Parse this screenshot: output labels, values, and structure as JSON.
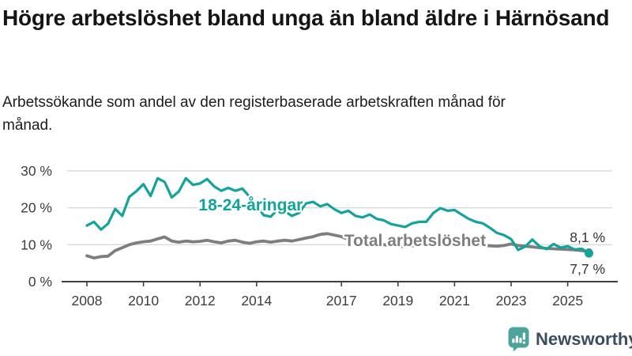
{
  "title": "Högre arbetslöshet bland unga än bland äldre i Härnösand",
  "subtitle": "Arbetssökande som andel av den registerbaserade arbetskraften månad för månad.",
  "branding": {
    "name": "Newsworthy",
    "icon": "newsworthy-speech-bubble-chart-icon",
    "icon_color": "#4CA49B",
    "text_color": "#3B4D5E"
  },
  "chart_data": {
    "type": "line",
    "title": "Högre arbetslöshet bland unga än bland äldre i Härnösand",
    "subtitle": "Arbetssökande som andel av den registerbaserade arbetskraften månad för månad.",
    "xlabel": "",
    "ylabel": "",
    "x_unit": "year (monthly series, sampled quarterly)",
    "x_axis_ticks": [
      2008,
      2010,
      2012,
      2014,
      2017,
      2019,
      2021,
      2023,
      2025
    ],
    "y_axis_ticks": [
      0,
      10,
      20,
      30
    ],
    "y_tick_suffix": " %",
    "ylim": [
      0,
      30
    ],
    "xlim_years": [
      2007.1,
      2026.8
    ],
    "grid": "horizontal",
    "legend": "inline-labels",
    "axis_text_color": "#3D3D3D",
    "gridline_color": "#DBDBDB",
    "axis_line_color": "#3F3F3F",
    "end_label_color": "#333333",
    "series": [
      {
        "name": "Total arbetslöshet",
        "color": "#7E7E7E",
        "line_width": 3.8,
        "end_dot_radius": 4.5,
        "start_year": 2008,
        "points_per_year": 4,
        "last_value_label": "8,1 %",
        "end_label_position": "above",
        "inline_label": {
          "x_year": 2017.1,
          "y_value": 9.6,
          "halo": true
        },
        "values": [
          7.0,
          6.4,
          6.8,
          6.9,
          8.4,
          9.2,
          10.0,
          10.5,
          10.8,
          11.0,
          11.6,
          12.1,
          11.0,
          10.7,
          11.0,
          10.8,
          10.9,
          11.2,
          10.8,
          10.5,
          11.0,
          11.2,
          10.7,
          10.4,
          10.8,
          11.0,
          10.7,
          11.0,
          11.2,
          11.0,
          11.4,
          11.8,
          12.2,
          12.8,
          13.0,
          12.6,
          12.2,
          11.4,
          10.8,
          10.5,
          10.3,
          10.1,
          10.0,
          9.8,
          9.6,
          9.5,
          9.7,
          10.0,
          10.5,
          11.1,
          11.3,
          11.0,
          10.7,
          10.3,
          10.0,
          9.9,
          9.8,
          9.7,
          9.6,
          9.8,
          10.2,
          9.8,
          9.6,
          9.4,
          9.2,
          9.0,
          8.9,
          8.8,
          8.7,
          8.6,
          8.4,
          8.1
        ]
      },
      {
        "name": "18-24-åringar",
        "color": "#12A39A",
        "line_width": 3.2,
        "end_dot_radius": 5.5,
        "start_year": 2008,
        "points_per_year": 4,
        "last_value_label": "7,7 %",
        "end_label_position": "below",
        "inline_label": {
          "x_year": 2011.95,
          "y_value": 19.3,
          "halo": true
        },
        "values": [
          15.2,
          16.2,
          14.1,
          15.7,
          19.7,
          17.8,
          23.0,
          24.5,
          26.4,
          23.2,
          28.0,
          27.0,
          22.8,
          24.4,
          28.0,
          26.2,
          26.6,
          27.8,
          25.8,
          24.6,
          25.4,
          24.6,
          25.2,
          23.0,
          20.6,
          18.0,
          17.6,
          19.6,
          19.0,
          17.8,
          18.6,
          21.2,
          21.6,
          20.4,
          21.0,
          19.6,
          18.6,
          19.2,
          17.8,
          17.4,
          18.2,
          17.0,
          16.6,
          15.6,
          15.2,
          14.8,
          15.8,
          16.2,
          16.2,
          18.6,
          19.9,
          19.2,
          19.4,
          18.2,
          17.0,
          16.2,
          15.8,
          14.6,
          13.2,
          12.6,
          11.5,
          8.6,
          9.5,
          11.4,
          9.6,
          8.8,
          10.2,
          9.2,
          9.6,
          8.7,
          8.9,
          7.7
        ]
      }
    ]
  }
}
